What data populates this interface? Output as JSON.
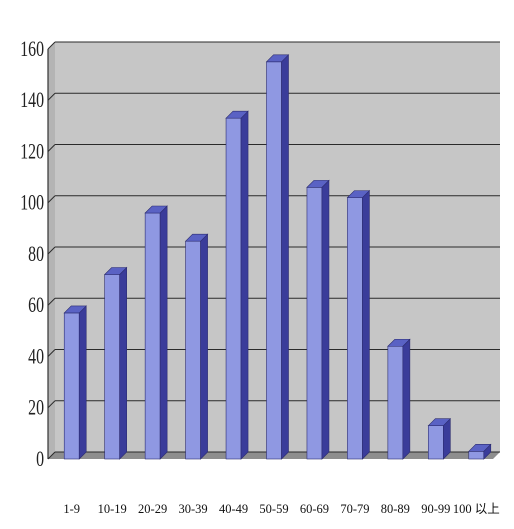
{
  "chart_data": {
    "type": "bar",
    "title": "",
    "xlabel": "",
    "ylabel": "",
    "categories": [
      "1-9",
      "10-19",
      "20-29",
      "30-39",
      "40-49",
      "50-59",
      "60-69",
      "70-79",
      "80-89",
      "90-99",
      "100 以上"
    ],
    "values": [
      57,
      72,
      96,
      85,
      133,
      155,
      106,
      102,
      44,
      13,
      3
    ],
    "ylim": [
      0,
      160
    ],
    "yticks": [
      "0",
      "20",
      "40",
      "60",
      "80",
      "100",
      "120",
      "140",
      "160"
    ],
    "grid": true,
    "legend": "none",
    "colors": {
      "bar_front": "#8f98e2",
      "bar_side": "#3a3c9a",
      "bar_top": "#5a62c4",
      "wall": "#c6c6c6",
      "floor": "#8e8e8e",
      "gridline": "#2a2a2a"
    }
  }
}
